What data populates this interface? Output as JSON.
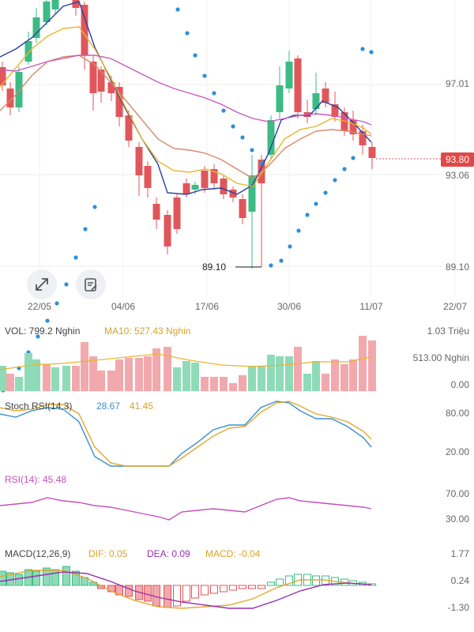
{
  "price_axis": {
    "top": "97.01",
    "mid": "93.06",
    "low": "89.10"
  },
  "current_price": "93.80",
  "low_marker": "89.10",
  "dates": [
    "22/05",
    "04/06",
    "17/06",
    "30/06",
    "11/07",
    "22/07"
  ],
  "vol": {
    "label": "VOL: 799.2 Nghin",
    "ma10": "MA10: 527.43 Nghin",
    "axis": [
      "1.03 Triệu",
      "513.00 Nghin",
      "0.00"
    ]
  },
  "stoch": {
    "label": "Stoch RSI(14,3)",
    "k": "28.67",
    "d": "41.45",
    "axis": [
      "80.00",
      "20.00"
    ]
  },
  "rsi": {
    "label": "RSI(14): 45.48",
    "axis": [
      "70.00",
      "30.00"
    ]
  },
  "macd": {
    "label": "MACD(12,26,9)",
    "dif": "DIF: 0.05",
    "dea": "DEA: 0.09",
    "macd": "MACD: -0.04",
    "axis": [
      "1.77",
      "0.24",
      "-1.30"
    ]
  },
  "colors": {
    "up": "#3dbb84",
    "down": "#e0575b",
    "ma_blue": "#2a3fa0",
    "ma_yellow": "#e8b52a",
    "ma_orange": "#d9886a",
    "ma_purple": "#c85ac0",
    "sar": "#2f8fd8",
    "vol_up": "#8fdbb8",
    "vol_down": "#f2a9ad"
  },
  "icons": {
    "expand": "expand-arrows-icon",
    "note": "note-edit-icon"
  }
}
